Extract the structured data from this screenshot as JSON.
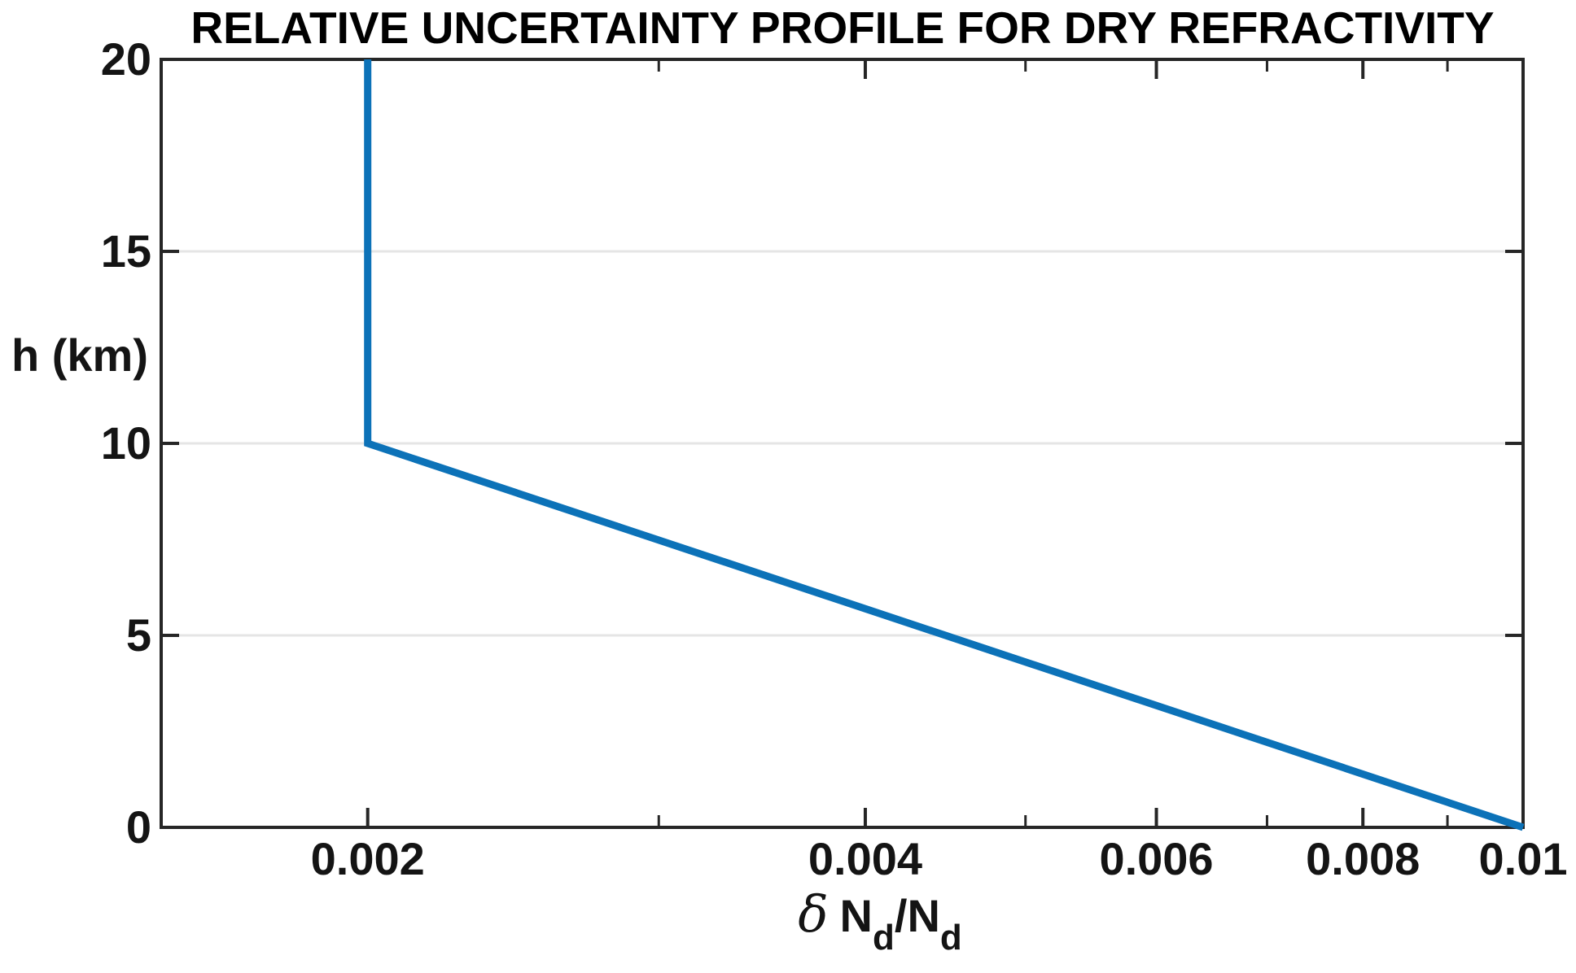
{
  "colors": {
    "line": "#0C72B8",
    "axis": "#262626",
    "grid": "#E5E5E5",
    "tick_text": "#141414",
    "title_text": "#000000",
    "background": "#FFFFFF"
  },
  "chart_data": {
    "type": "line",
    "title": "RELATIVE UNCERTAINTY PROFILE FOR DRY REFRACTIVITY",
    "xlabel": "δ Nd/Nd",
    "xlabel_parts": {
      "delta": "δ",
      "numerator": "N",
      "numerator_sub": "d",
      "slash": "/",
      "denominator": "N",
      "denominator_sub": "d"
    },
    "ylabel": "h (km)",
    "x_scale": "log",
    "y_scale": "linear",
    "xlim": [
      0.0015,
      0.01
    ],
    "ylim": [
      0,
      20
    ],
    "x_major_ticks": [
      0.002,
      0.004,
      0.006,
      0.008,
      0.01
    ],
    "x_major_tick_labels": [
      "0.002",
      "0.004",
      "0.006",
      "0.008",
      "0.01"
    ],
    "x_minor_ticks": [
      0.003,
      0.005,
      0.007,
      0.009
    ],
    "y_ticks": [
      0,
      5,
      10,
      15,
      20
    ],
    "y_tick_labels": [
      "0",
      "5",
      "10",
      "15",
      "20"
    ],
    "grid": "horizontal-only",
    "gridlines_y": [
      5,
      10,
      15
    ],
    "legend_position": "none",
    "box": true,
    "series": [
      {
        "name": "relative-uncertainty-dry-refractivity",
        "color": "#0C72B8",
        "points": [
          [
            0.002,
            20
          ],
          [
            0.002,
            10
          ],
          [
            0.01,
            0
          ]
        ]
      }
    ]
  }
}
